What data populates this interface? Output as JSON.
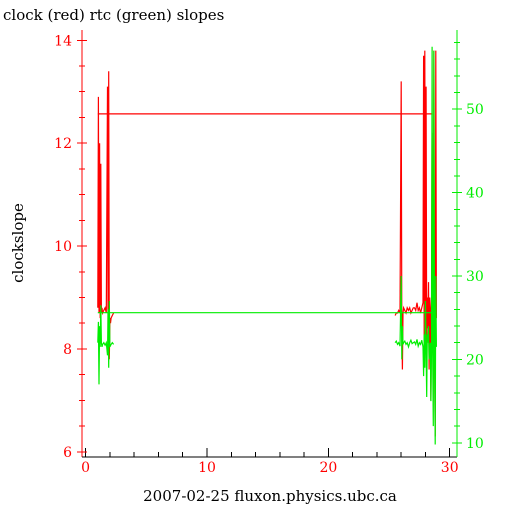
{
  "chart_data": {
    "type": "line",
    "title": "clock (red) rtc (green) slopes",
    "xlabel": "2007-02-25 fluxon.physics.ubc.ca",
    "ylabel": "clockslope",
    "y2label": "",
    "xlim": [
      -0.3,
      30.6
    ],
    "ylim": [
      5.9,
      14.2
    ],
    "y2lim": [
      8.3,
      59.5
    ],
    "x_ticks": [
      0,
      10,
      20,
      30
    ],
    "y_ticks": [
      6,
      8,
      10,
      12,
      14
    ],
    "y2_ticks": [
      10,
      20,
      30,
      40,
      50
    ],
    "grid": false,
    "colors": {
      "clock": "#ff0000",
      "rtc": "#00ee00",
      "frame": "#000000"
    },
    "series": [
      {
        "axis": "left",
        "color": "#ff0000",
        "segments": [
          {
            "x": [
              1.0,
              1.05,
              1.1,
              1.15,
              1.2,
              1.25,
              1.3,
              1.35,
              1.4,
              1.5,
              1.6,
              1.7,
              1.8,
              1.85,
              1.9,
              1.95,
              2.0,
              2.05,
              2.1,
              2.2,
              2.3
            ],
            "y": [
              8.8,
              12.9,
              8.7,
              12.0,
              8.6,
              11.6,
              8.7,
              8.8,
              8.7,
              8.75,
              8.8,
              8.7,
              13.1,
              8.0,
              13.4,
              7.8,
              8.6,
              8.5,
              8.6,
              8.65,
              8.7
            ]
          },
          {
            "x": [
              1.0,
              28.6
            ],
            "y": [
              12.57,
              12.57
            ]
          },
          {
            "x": [
              25.5,
              25.6,
              25.7,
              25.8,
              25.9,
              26.0,
              26.05,
              26.1,
              26.15,
              26.2,
              26.3,
              26.4,
              26.5,
              26.6,
              26.7,
              26.8,
              26.9,
              27.0,
              27.1,
              27.2,
              27.3,
              27.4,
              27.5,
              27.6,
              27.7,
              27.8,
              27.85,
              27.9,
              27.95,
              28.0,
              28.05,
              28.1,
              28.15,
              28.2,
              28.25,
              28.3,
              28.35,
              28.4,
              28.45,
              28.5,
              28.55,
              28.6,
              28.65,
              28.7,
              28.75,
              28.8,
              28.85,
              28.9
            ],
            "y": [
              8.65,
              8.7,
              8.7,
              8.75,
              8.7,
              13.2,
              8.6,
              7.6,
              8.7,
              8.8,
              8.75,
              8.7,
              8.8,
              8.75,
              8.8,
              8.7,
              8.75,
              8.8,
              8.8,
              8.75,
              8.9,
              8.75,
              8.8,
              8.7,
              8.8,
              8.9,
              13.7,
              8.0,
              13.8,
              8.7,
              13.1,
              7.8,
              9.0,
              8.4,
              9.3,
              7.6,
              9.0,
              8.8,
              7.0,
              8.7,
              12.2,
              8.8,
              7.4,
              13.8,
              8.0,
              6.3,
              13.8,
              8.6
            ]
          }
        ]
      },
      {
        "axis": "right",
        "color": "#00ee00",
        "segments": [
          {
            "x": [
              1.0,
              1.05,
              1.1,
              1.15,
              1.2,
              1.25,
              1.3,
              1.35,
              1.4,
              1.5,
              1.6,
              1.7,
              1.8,
              1.85,
              1.9,
              1.95,
              2.0,
              2.1,
              2.2,
              2.3
            ],
            "y": [
              22.0,
              24.5,
              17.0,
              24.0,
              21.5,
              26.5,
              22.0,
              21.5,
              21.8,
              22.0,
              21.7,
              22.0,
              20.5,
              26.0,
              19.0,
              27.0,
              21.5,
              21.8,
              22.0,
              21.8
            ]
          },
          {
            "x": [
              1.0,
              28.6
            ],
            "y": [
              25.6,
              25.6
            ]
          },
          {
            "x": [
              25.5,
              25.6,
              25.7,
              25.8,
              25.9,
              26.0,
              26.05,
              26.1,
              26.15,
              26.2,
              26.3,
              26.4,
              26.5,
              26.6,
              26.7,
              26.8,
              26.9,
              27.0,
              27.1,
              27.2,
              27.3,
              27.4,
              27.5,
              27.6,
              27.7,
              27.8,
              27.85,
              27.9,
              27.95,
              28.0,
              28.05,
              28.1,
              28.15,
              28.2,
              28.25,
              28.3,
              28.35,
              28.4,
              28.45,
              28.5,
              28.55,
              28.6,
              28.65,
              28.7,
              28.75,
              28.8,
              28.85,
              28.9
            ],
            "y": [
              22.0,
              22.2,
              21.8,
              22.0,
              21.6,
              30.0,
              20.0,
              24.0,
              21.8,
              22.0,
              22.2,
              21.8,
              22.0,
              21.5,
              22.0,
              22.3,
              21.9,
              22.0,
              22.1,
              21.8,
              22.4,
              21.6,
              22.0,
              21.8,
              22.3,
              21.5,
              18.0,
              23.0,
              19.0,
              27.0,
              21.0,
              15.5,
              23.0,
              22.0,
              24.0,
              20.0,
              21.5,
              22.0,
              15.0,
              21.0,
              57.5,
              20.0,
              12.0,
              57.0,
              22.0,
              9.8,
              30.0,
              21.5
            ]
          }
        ]
      }
    ]
  }
}
